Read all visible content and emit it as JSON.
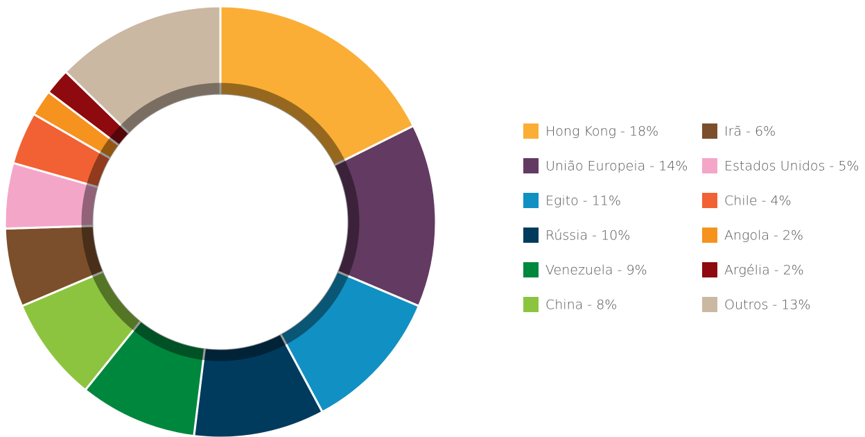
{
  "chart_data": {
    "type": "donut",
    "categories": [
      "Hong Kong - 18%",
      "União Europeia - 14%",
      "Egito - 11%",
      "Rússia - 10%",
      "Venezuela - 9%",
      "China - 8%",
      "Irã - 6%",
      "Estados Unidos - 5%",
      "Chile - 4%",
      "Angola - 2%",
      "Argélia - 2%",
      "Outros - 13%"
    ],
    "values": [
      18,
      14,
      11,
      10,
      9,
      8,
      6,
      5,
      4,
      2,
      2,
      13
    ],
    "colors": [
      "#fbae35",
      "#633a62",
      "#1190c4",
      "#003b5e",
      "#00873e",
      "#8dc43f",
      "#7b4f2b",
      "#f4a6c9",
      "#f26133",
      "#f6921e",
      "#8e0a0e",
      "#cbb8a3"
    ],
    "legend": "right"
  }
}
